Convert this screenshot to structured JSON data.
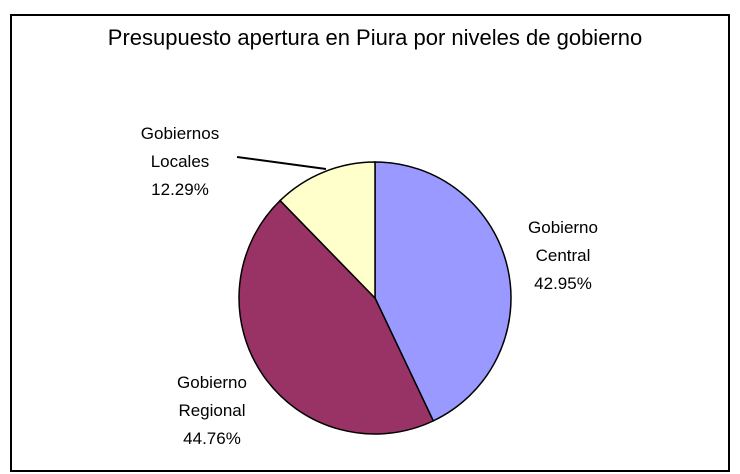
{
  "chart_data": {
    "type": "pie",
    "title": "Presupuesto apertura en Piura por niveles de gobierno",
    "categories": [
      "Gobierno Central",
      "Gobierno Regional",
      "Gobiernos Locales"
    ],
    "values": [
      42.95,
      44.76,
      12.29
    ],
    "value_labels": [
      "42.95%",
      "44.76%",
      "12.29%"
    ],
    "colors": [
      "#9999ff",
      "#993366",
      "#ffffcc"
    ]
  }
}
